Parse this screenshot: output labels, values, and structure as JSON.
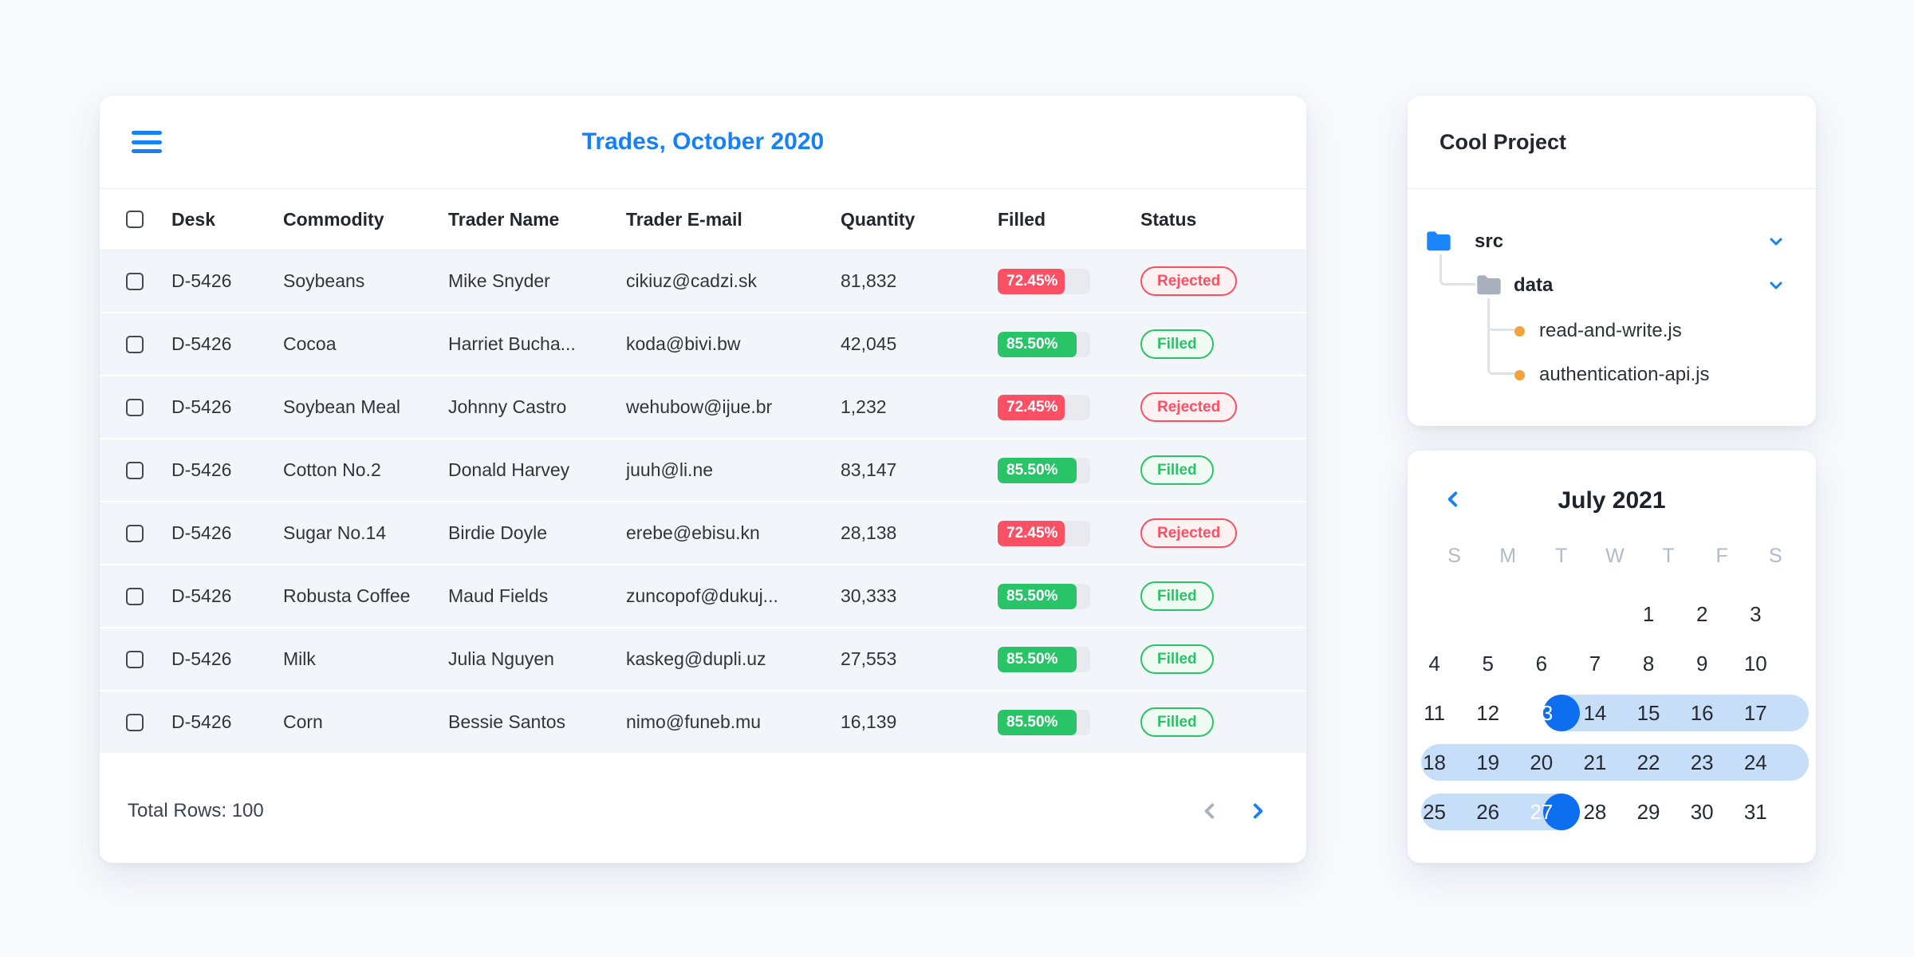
{
  "colors": {
    "accent_blue": "#1781f3",
    "calendar_selected_blue": "#0d6ef0",
    "calendar_range_blue": "#c7def9",
    "rejected_red": "#fa5064",
    "filled_green": "#28c467",
    "row_background": "#f2f5f9",
    "progress_track": "#e8eaef",
    "muted_gray": "#b2bac6",
    "file_dot_orange": "#f2a33c"
  },
  "trades": {
    "title": "Trades, October 2020",
    "columns": [
      "Desk",
      "Commodity",
      "Trader Name",
      "Trader E-mail",
      "Quantity",
      "Filled",
      "Status"
    ],
    "rows": [
      {
        "desk": "D-5426",
        "commodity": "Soybeans",
        "trader": "Mike Snyder",
        "email": "cikiuz@cadzi.sk",
        "quantity": "81,832",
        "filled_label": "72.45%",
        "filled_value": 72.45,
        "status": "Rejected",
        "state": "rejected"
      },
      {
        "desk": "D-5426",
        "commodity": "Cocoa",
        "trader": "Harriet Bucha...",
        "email": "koda@bivi.bw",
        "quantity": "42,045",
        "filled_label": "85.50%",
        "filled_value": 85.5,
        "status": "Filled",
        "state": "filled"
      },
      {
        "desk": "D-5426",
        "commodity": "Soybean Meal",
        "trader": "Johnny Castro",
        "email": "wehubow@ijue.br",
        "quantity": "1,232",
        "filled_label": "72.45%",
        "filled_value": 72.45,
        "status": "Rejected",
        "state": "rejected"
      },
      {
        "desk": "D-5426",
        "commodity": "Cotton No.2",
        "trader": "Donald Harvey",
        "email": "juuh@li.ne",
        "quantity": "83,147",
        "filled_label": "85.50%",
        "filled_value": 85.5,
        "status": "Filled",
        "state": "filled"
      },
      {
        "desk": "D-5426",
        "commodity": "Sugar No.14",
        "trader": "Birdie Doyle",
        "email": "erebe@ebisu.kn",
        "quantity": "28,138",
        "filled_label": "72.45%",
        "filled_value": 72.45,
        "status": "Rejected",
        "state": "rejected"
      },
      {
        "desk": "D-5426",
        "commodity": "Robusta Coffee",
        "trader": "Maud Fields",
        "email": "zuncopof@dukuj...",
        "quantity": "30,333",
        "filled_label": "85.50%",
        "filled_value": 85.5,
        "status": "Filled",
        "state": "filled"
      },
      {
        "desk": "D-5426",
        "commodity": "Milk",
        "trader": "Julia Nguyen",
        "email": "kaskeg@dupli.uz",
        "quantity": "27,553",
        "filled_label": "85.50%",
        "filled_value": 85.5,
        "status": "Filled",
        "state": "filled"
      },
      {
        "desk": "D-5426",
        "commodity": "Corn",
        "trader": "Bessie Santos",
        "email": "nimo@funeb.mu",
        "quantity": "16,139",
        "filled_label": "85.50%",
        "filled_value": 85.5,
        "status": "Filled",
        "state": "filled"
      }
    ],
    "footer": {
      "total_label": "Total Rows: 100"
    }
  },
  "project": {
    "title": "Cool Project",
    "tree": {
      "root": {
        "name": "src",
        "type": "folder",
        "expanded": true
      },
      "folder": {
        "name": "data",
        "type": "folder",
        "expanded": true
      },
      "files": [
        {
          "name": "read-and-write.js"
        },
        {
          "name": "authentication-api.js"
        }
      ]
    }
  },
  "calendar": {
    "title": "July 2021",
    "weekdays": [
      "S",
      "M",
      "T",
      "W",
      "T",
      "F",
      "S"
    ],
    "weeks": [
      [
        "",
        "",
        "",
        "",
        "1",
        "2",
        "3"
      ],
      [
        "4",
        "5",
        "6",
        "7",
        "8",
        "9",
        "10"
      ],
      [
        "11",
        "12",
        "13",
        "14",
        "15",
        "16",
        "17"
      ],
      [
        "18",
        "19",
        "20",
        "21",
        "22",
        "23",
        "24"
      ],
      [
        "25",
        "26",
        "27",
        "28",
        "29",
        "30",
        "31"
      ]
    ],
    "range": {
      "start": 13,
      "end": 27
    }
  }
}
